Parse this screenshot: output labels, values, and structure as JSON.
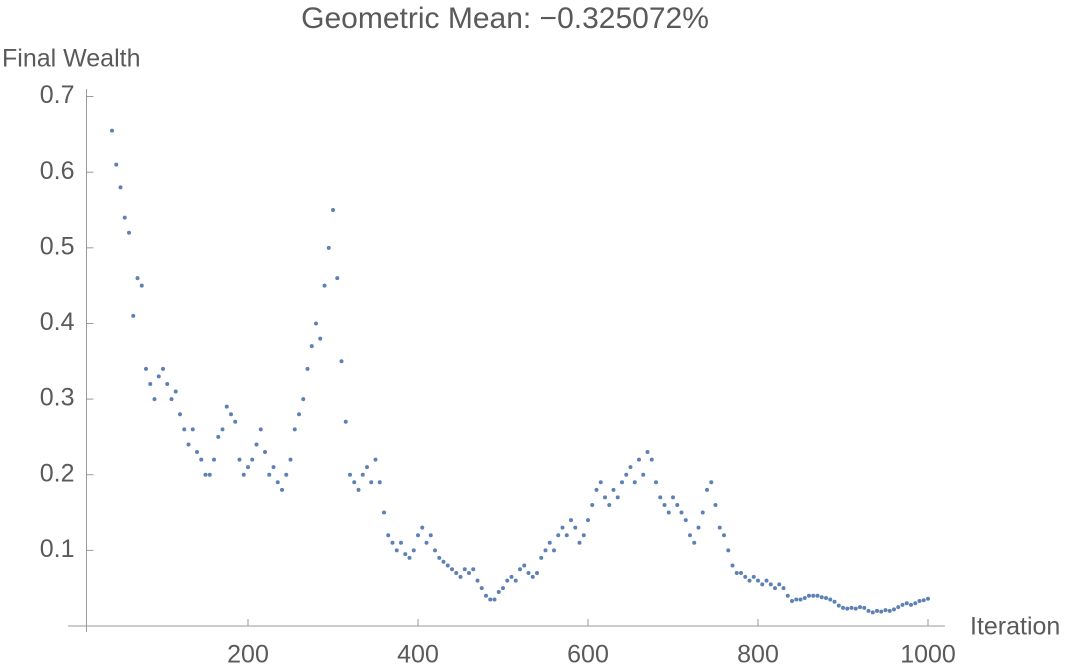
{
  "chart_data": {
    "type": "scatter",
    "title": "Geometric Mean: −0.325072%",
    "x_label": "Iteration",
    "y_label": "Final Wealth",
    "color": "#5e81b5",
    "xlim": [
      10,
      1020
    ],
    "ylim": [
      0,
      0.71
    ],
    "xticks": [
      200,
      400,
      600,
      800,
      1000
    ],
    "yticks": [
      0.1,
      0.2,
      0.3,
      0.4,
      0.5,
      0.6,
      0.7
    ],
    "x": [
      40,
      45,
      50,
      55,
      60,
      65,
      70,
      75,
      80,
      85,
      90,
      95,
      100,
      105,
      110,
      115,
      120,
      125,
      130,
      135,
      140,
      145,
      150,
      155,
      160,
      165,
      170,
      175,
      180,
      185,
      190,
      195,
      200,
      205,
      210,
      215,
      220,
      225,
      230,
      235,
      240,
      245,
      250,
      255,
      260,
      265,
      270,
      275,
      280,
      285,
      290,
      295,
      300,
      305,
      310,
      315,
      320,
      325,
      330,
      335,
      340,
      345,
      350,
      355,
      360,
      365,
      370,
      375,
      380,
      385,
      390,
      395,
      400,
      405,
      410,
      415,
      420,
      425,
      430,
      435,
      440,
      445,
      450,
      455,
      460,
      465,
      470,
      475,
      480,
      485,
      490,
      495,
      500,
      505,
      510,
      515,
      520,
      525,
      530,
      535,
      540,
      545,
      550,
      555,
      560,
      565,
      570,
      575,
      580,
      585,
      590,
      595,
      600,
      605,
      610,
      615,
      620,
      625,
      630,
      635,
      640,
      645,
      650,
      655,
      660,
      665,
      670,
      675,
      680,
      685,
      690,
      695,
      700,
      705,
      710,
      715,
      720,
      725,
      730,
      735,
      740,
      745,
      750,
      755,
      760,
      765,
      770,
      775,
      780,
      785,
      790,
      795,
      800,
      805,
      810,
      815,
      820,
      825,
      830,
      835,
      840,
      845,
      850,
      855,
      860,
      865,
      870,
      875,
      880,
      885,
      890,
      895,
      900,
      905,
      910,
      915,
      920,
      925,
      930,
      935,
      940,
      945,
      950,
      955,
      960,
      965,
      970,
      975,
      980,
      985,
      990,
      995,
      1000
    ],
    "values": [
      0.655,
      0.61,
      0.58,
      0.54,
      0.52,
      0.41,
      0.46,
      0.45,
      0.34,
      0.32,
      0.3,
      0.33,
      0.34,
      0.32,
      0.3,
      0.31,
      0.28,
      0.26,
      0.24,
      0.26,
      0.23,
      0.22,
      0.2,
      0.2,
      0.22,
      0.25,
      0.26,
      0.29,
      0.28,
      0.27,
      0.22,
      0.2,
      0.21,
      0.22,
      0.24,
      0.26,
      0.23,
      0.2,
      0.21,
      0.19,
      0.18,
      0.2,
      0.22,
      0.26,
      0.28,
      0.3,
      0.34,
      0.37,
      0.4,
      0.38,
      0.45,
      0.5,
      0.55,
      0.46,
      0.35,
      0.27,
      0.2,
      0.19,
      0.18,
      0.2,
      0.21,
      0.19,
      0.22,
      0.19,
      0.15,
      0.12,
      0.11,
      0.1,
      0.11,
      0.095,
      0.09,
      0.1,
      0.12,
      0.13,
      0.11,
      0.12,
      0.1,
      0.09,
      0.085,
      0.08,
      0.075,
      0.07,
      0.065,
      0.075,
      0.07,
      0.075,
      0.06,
      0.05,
      0.04,
      0.035,
      0.035,
      0.045,
      0.05,
      0.06,
      0.065,
      0.06,
      0.075,
      0.08,
      0.07,
      0.065,
      0.07,
      0.09,
      0.1,
      0.11,
      0.1,
      0.12,
      0.13,
      0.12,
      0.14,
      0.13,
      0.11,
      0.12,
      0.14,
      0.16,
      0.18,
      0.19,
      0.17,
      0.16,
      0.18,
      0.17,
      0.19,
      0.2,
      0.21,
      0.19,
      0.22,
      0.2,
      0.23,
      0.22,
      0.19,
      0.17,
      0.16,
      0.15,
      0.17,
      0.16,
      0.15,
      0.14,
      0.12,
      0.11,
      0.13,
      0.15,
      0.18,
      0.19,
      0.16,
      0.13,
      0.12,
      0.1,
      0.08,
      0.07,
      0.07,
      0.065,
      0.06,
      0.065,
      0.06,
      0.055,
      0.06,
      0.055,
      0.05,
      0.055,
      0.05,
      0.04,
      0.033,
      0.035,
      0.035,
      0.037,
      0.04,
      0.04,
      0.04,
      0.038,
      0.037,
      0.035,
      0.032,
      0.027,
      0.024,
      0.023,
      0.024,
      0.023,
      0.025,
      0.024,
      0.02,
      0.018,
      0.02,
      0.019,
      0.021,
      0.02,
      0.022,
      0.025,
      0.028,
      0.03,
      0.028,
      0.03,
      0.033,
      0.034,
      0.036
    ]
  }
}
